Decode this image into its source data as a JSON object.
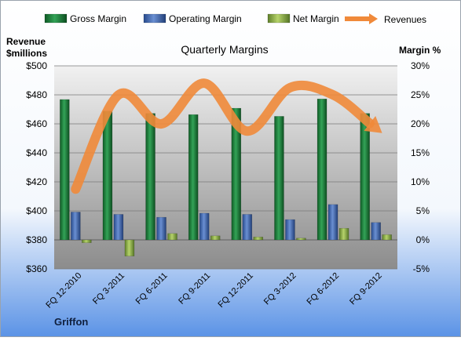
{
  "chart_data": {
    "type": "bar",
    "title": "Quarterly Margins",
    "company": "Griffon",
    "left_axis_title": [
      "Revenue",
      "$millions"
    ],
    "right_axis_title": "Margin %",
    "categories": [
      "FQ 12-2010",
      "FQ 3-2011",
      "FQ 6-2011",
      "FQ 9-2011",
      "FQ 12-2011",
      "FQ 3-2012",
      "FQ 6-2012",
      "FQ 9-2012"
    ],
    "left_axis": {
      "min": 360,
      "max": 500,
      "step": 20,
      "tick_labels": [
        "$360",
        "$380",
        "$400",
        "$420",
        "$440",
        "$460",
        "$480",
        "$500"
      ]
    },
    "right_axis": {
      "min": -5,
      "max": 30,
      "step": 5,
      "tick_labels": [
        "-5%",
        "0%",
        "5%",
        "10%",
        "15%",
        "20%",
        "25%",
        "30%"
      ]
    },
    "series": [
      {
        "name": "Gross Margin",
        "type": "bar",
        "axis": "right",
        "color": "#1e7a3c",
        "values": [
          24.2,
          22.2,
          21.8,
          21.6,
          22.7,
          21.3,
          24.3,
          21.8
        ]
      },
      {
        "name": "Operating Margin",
        "type": "bar",
        "axis": "right",
        "color": "#3e64b0",
        "values": [
          4.8,
          4.4,
          3.9,
          4.6,
          4.4,
          3.5,
          6.1,
          3.0
        ]
      },
      {
        "name": "Net Margin",
        "type": "bar",
        "axis": "right",
        "color": "#8fb04a",
        "values": [
          -0.5,
          -2.8,
          1.1,
          0.7,
          0.5,
          0.3,
          2.0,
          0.9
        ]
      },
      {
        "name": "Revenues",
        "type": "line",
        "axis": "left",
        "color": "#f0893a",
        "values": [
          415,
          480,
          460,
          488,
          455,
          485,
          480,
          457
        ]
      }
    ],
    "grid": true,
    "legend": "top"
  }
}
